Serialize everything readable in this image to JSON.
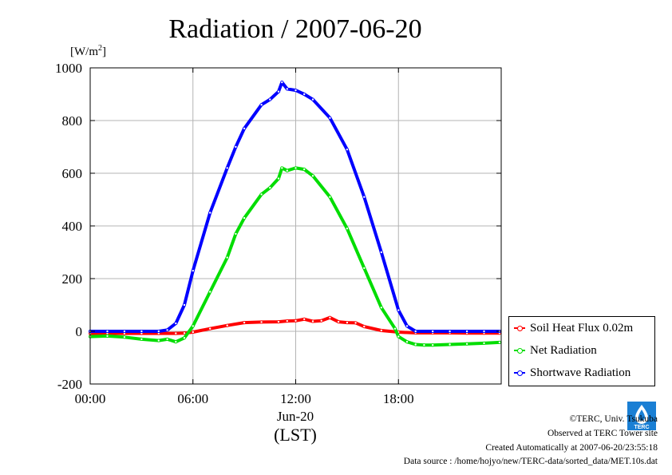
{
  "page": {
    "footer": {
      "copyright": "©TERC, Univ. Tsukuba",
      "observed": "Observed at TERC Tower site",
      "created": "Created Automatically at 2007-06-20/23:55:18",
      "source": "Data source : /home/hojyo/new/TERC-data/sorted_data/MET.10s.dat"
    },
    "logo_text": "TERC"
  },
  "chart_data": {
    "type": "line",
    "title": "Radiation / 2007-06-20",
    "ylabel_unit": "[W/m",
    "ylabel_sup": "2",
    "ylabel_close": "]",
    "xlabel_date": "Jun-20",
    "xlabel_tz": "(LST)",
    "xlim": [
      0,
      24
    ],
    "ylim": [
      -200,
      1000
    ],
    "grid": true,
    "legend_placement": "right-bottom",
    "x_ticks": [
      {
        "value": 0,
        "label": "00:00"
      },
      {
        "value": 6,
        "label": "06:00"
      },
      {
        "value": 12,
        "label": "12:00"
      },
      {
        "value": 18,
        "label": "18:00"
      }
    ],
    "y_ticks": [
      {
        "value": -200,
        "label": "-200"
      },
      {
        "value": 0,
        "label": "0"
      },
      {
        "value": 200,
        "label": "200"
      },
      {
        "value": 400,
        "label": "400"
      },
      {
        "value": 600,
        "label": "600"
      },
      {
        "value": 800,
        "label": "800"
      },
      {
        "value": 1000,
        "label": "1000"
      }
    ],
    "series": [
      {
        "name": "Soil Heat Flux 0.02m",
        "color": "#ff0000",
        "x": [
          0,
          1,
          2,
          3,
          4,
          5,
          5.5,
          6,
          7,
          8,
          9,
          10,
          11,
          11.5,
          12,
          12.5,
          13,
          13.5,
          14,
          14.5,
          15,
          15.5,
          16,
          17,
          18,
          19,
          20,
          21,
          22,
          23,
          23.9
        ],
        "y": [
          -8,
          -8,
          -8,
          -8,
          -8,
          -8,
          -7,
          -3,
          10,
          22,
          33,
          35,
          36,
          39,
          40,
          46,
          38,
          40,
          52,
          36,
          33,
          32,
          18,
          3,
          -3,
          -6,
          -6,
          -6,
          -7,
          -7,
          -7
        ]
      },
      {
        "name": "Net Radiation",
        "color": "#00dd00",
        "x": [
          0,
          1,
          2,
          3,
          4,
          4.5,
          5,
          5.5,
          6,
          7,
          8,
          8.5,
          9,
          10,
          10.5,
          11,
          11.2,
          11.5,
          12,
          12.5,
          13,
          14,
          15,
          16,
          17,
          17.8,
          18,
          18.5,
          19,
          19.5,
          20,
          21,
          22,
          23,
          23.9
        ],
        "y": [
          -20,
          -18,
          -22,
          -30,
          -35,
          -30,
          -40,
          -25,
          20,
          150,
          280,
          370,
          430,
          520,
          545,
          580,
          620,
          610,
          620,
          615,
          590,
          510,
          390,
          240,
          90,
          10,
          -20,
          -40,
          -50,
          -52,
          -52,
          -50,
          -48,
          -45,
          -42
        ]
      },
      {
        "name": "Shortwave Radiation",
        "color": "#0000ff",
        "x": [
          0,
          1,
          2,
          3,
          4,
          4.5,
          5,
          5.5,
          6,
          7,
          8,
          8.5,
          9,
          10,
          10.5,
          11,
          11.2,
          11.5,
          12,
          12.5,
          13,
          14,
          15,
          16,
          17,
          18,
          18.5,
          19,
          20,
          21,
          22,
          23,
          23.9
        ],
        "y": [
          0,
          0,
          0,
          0,
          0,
          5,
          30,
          100,
          230,
          450,
          620,
          700,
          770,
          860,
          880,
          910,
          945,
          920,
          915,
          900,
          880,
          810,
          690,
          510,
          300,
          80,
          20,
          0,
          0,
          0,
          0,
          0,
          0
        ]
      }
    ]
  }
}
